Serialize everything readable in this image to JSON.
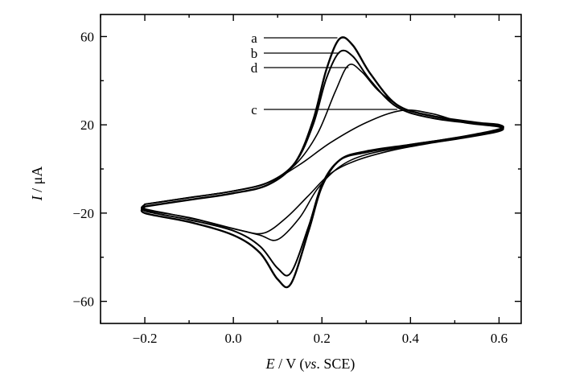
{
  "chart_data": {
    "type": "line",
    "title": "",
    "xlabel": {
      "italic": "E",
      "unit": " / V (",
      "vs": "vs",
      "ref": ". SCE)"
    },
    "ylabel": {
      "italic": "I",
      "unit": " / μA"
    },
    "xlim": [
      -0.3,
      0.65
    ],
    "ylim": [
      -70,
      70
    ],
    "x_ticks": [
      -0.2,
      0.0,
      0.2,
      0.4,
      0.6
    ],
    "x_tick_labels": [
      "−0.2",
      "0.0",
      "0.2",
      "0.4",
      "0.6"
    ],
    "y_ticks": [
      -60,
      -20,
      20,
      60
    ],
    "y_tick_labels": [
      "−60",
      "−20",
      "20",
      "60"
    ],
    "grid": false,
    "series": [
      {
        "name": "a",
        "anodic": [
          [
            -0.2,
            -17
          ],
          [
            -0.1,
            -14
          ],
          [
            0.0,
            -11
          ],
          [
            0.08,
            -7
          ],
          [
            0.14,
            3
          ],
          [
            0.18,
            22
          ],
          [
            0.21,
            45
          ],
          [
            0.24,
            59
          ],
          [
            0.27,
            56
          ],
          [
            0.31,
            43
          ],
          [
            0.37,
            29
          ],
          [
            0.45,
            24
          ],
          [
            0.55,
            21
          ],
          [
            0.6,
            20
          ]
        ],
        "cathodic": [
          [
            0.6,
            18
          ],
          [
            0.5,
            14
          ],
          [
            0.4,
            11
          ],
          [
            0.3,
            8
          ],
          [
            0.24,
            4
          ],
          [
            0.2,
            -8
          ],
          [
            0.17,
            -28
          ],
          [
            0.13,
            -52
          ],
          [
            0.1,
            -50
          ],
          [
            0.06,
            -38
          ],
          [
            0.0,
            -30
          ],
          [
            -0.1,
            -24
          ],
          [
            -0.2,
            -20
          ]
        ]
      },
      {
        "name": "b",
        "anodic": [
          [
            -0.2,
            -16
          ],
          [
            -0.1,
            -13
          ],
          [
            0.0,
            -10
          ],
          [
            0.08,
            -6
          ],
          [
            0.14,
            3
          ],
          [
            0.18,
            20
          ],
          [
            0.21,
            41
          ],
          [
            0.24,
            53
          ],
          [
            0.27,
            51
          ],
          [
            0.31,
            40
          ],
          [
            0.37,
            28
          ],
          [
            0.45,
            23
          ],
          [
            0.55,
            20.5
          ],
          [
            0.6,
            19.5
          ]
        ],
        "cathodic": [
          [
            0.6,
            17.5
          ],
          [
            0.5,
            14
          ],
          [
            0.4,
            11
          ],
          [
            0.3,
            7.5
          ],
          [
            0.24,
            4
          ],
          [
            0.2,
            -7
          ],
          [
            0.17,
            -26
          ],
          [
            0.13,
            -47
          ],
          [
            0.1,
            -45
          ],
          [
            0.06,
            -35
          ],
          [
            0.0,
            -28
          ],
          [
            -0.1,
            -23
          ],
          [
            -0.2,
            -19
          ]
        ]
      },
      {
        "name": "d",
        "anodic": [
          [
            -0.2,
            -16
          ],
          [
            -0.1,
            -13
          ],
          [
            0.0,
            -10
          ],
          [
            0.08,
            -6
          ],
          [
            0.14,
            2
          ],
          [
            0.19,
            16
          ],
          [
            0.23,
            35
          ],
          [
            0.26,
            47
          ],
          [
            0.29,
            44
          ],
          [
            0.33,
            35
          ],
          [
            0.39,
            27
          ],
          [
            0.47,
            23
          ],
          [
            0.55,
            20.5
          ],
          [
            0.6,
            19.5
          ]
        ],
        "cathodic": [
          [
            0.6,
            17.5
          ],
          [
            0.5,
            13.5
          ],
          [
            0.4,
            10.5
          ],
          [
            0.3,
            6.5
          ],
          [
            0.24,
            1
          ],
          [
            0.19,
            -9
          ],
          [
            0.15,
            -22
          ],
          [
            0.1,
            -32
          ],
          [
            0.06,
            -30
          ],
          [
            0.0,
            -27
          ],
          [
            -0.1,
            -22
          ],
          [
            -0.2,
            -18.5
          ]
        ]
      },
      {
        "name": "c",
        "anodic": [
          [
            -0.2,
            -16
          ],
          [
            -0.1,
            -13
          ],
          [
            0.0,
            -10
          ],
          [
            0.08,
            -6
          ],
          [
            0.15,
            2
          ],
          [
            0.22,
            12
          ],
          [
            0.3,
            21
          ],
          [
            0.38,
            26.5
          ],
          [
            0.45,
            25
          ],
          [
            0.52,
            21
          ],
          [
            0.6,
            19
          ]
        ],
        "cathodic": [
          [
            0.6,
            17
          ],
          [
            0.52,
            14
          ],
          [
            0.44,
            11.5
          ],
          [
            0.36,
            8.5
          ],
          [
            0.28,
            4
          ],
          [
            0.22,
            -2
          ],
          [
            0.17,
            -12
          ],
          [
            0.12,
            -22
          ],
          [
            0.07,
            -29
          ],
          [
            0.02,
            -28
          ],
          [
            -0.06,
            -24
          ],
          [
            -0.14,
            -20.5
          ],
          [
            -0.2,
            -18
          ]
        ]
      }
    ],
    "annotations": [
      {
        "label": "a",
        "target": [
          0.235,
          59
        ]
      },
      {
        "label": "b",
        "target": [
          0.24,
          53
        ]
      },
      {
        "label": "d",
        "target": [
          0.26,
          47
        ]
      },
      {
        "label": "c",
        "target": [
          0.37,
          26.5
        ]
      }
    ]
  }
}
